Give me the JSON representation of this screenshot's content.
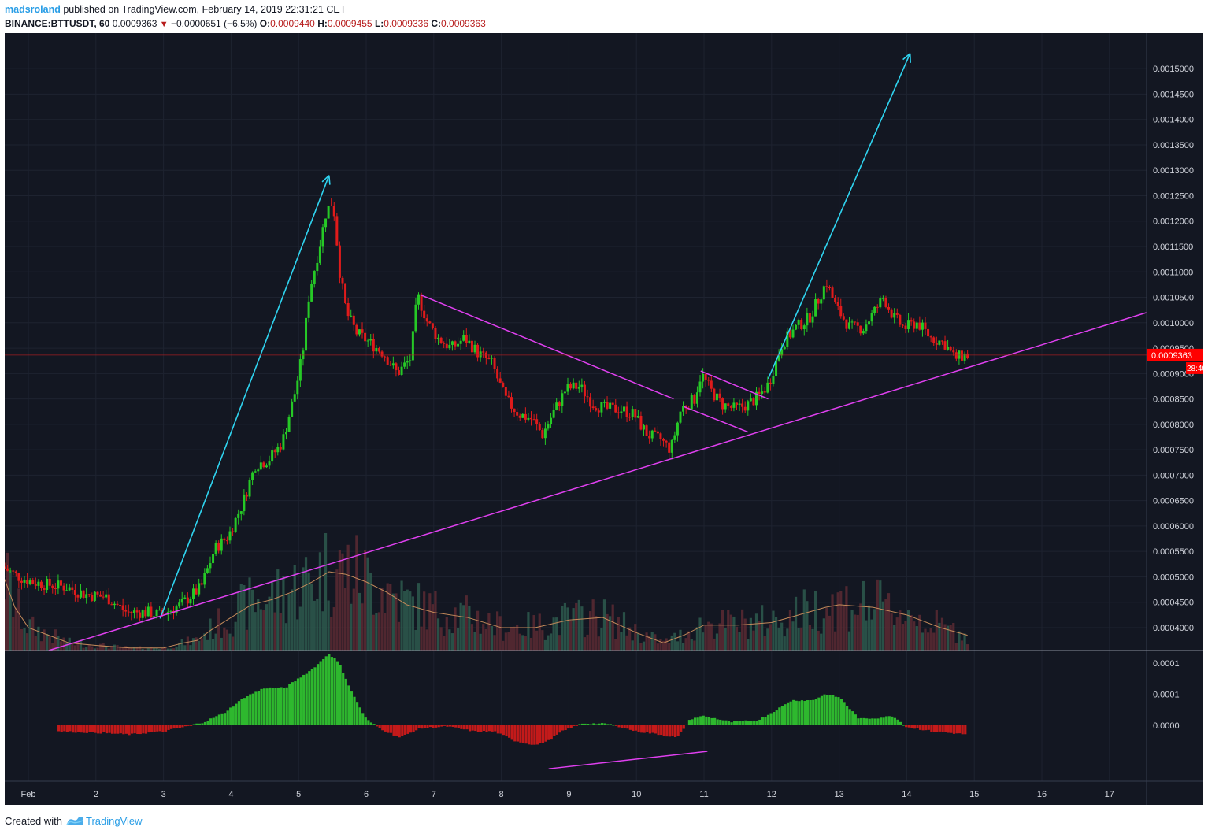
{
  "header": {
    "username": "madsroland",
    "published_text": "published on TradingView.com, February 14, 2019 22:31:21 CET",
    "symbol": "BINANCE:BTTUSDT, 60",
    "last_price": "0.0009363",
    "change_arrow": "▼",
    "change": "−0.0000651 (−6.5%)",
    "open_label": "O:",
    "open_value": "0.0009440",
    "high_label": "H:",
    "high_value": "0.0009455",
    "low_label": "L:",
    "low_value": "0.0009336",
    "close_label": "C:",
    "close_value": "0.0009363"
  },
  "price_tag": {
    "price": "0.0009363",
    "countdown": "28:40"
  },
  "footer": {
    "created_with": "Created with",
    "brand": "TradingView"
  },
  "colors": {
    "background": "#131722",
    "up_candle": "#26c926",
    "down_candle": "#e01b1b",
    "volume_up": "#2e5a4e",
    "volume_down": "#5c2a33",
    "volume_ma": "#c48a5a",
    "cyan_arrows": "#2fd4f0",
    "magenta_lines": "#e040f0",
    "osc_up": "#2eb82e",
    "osc_down": "#c41a1a",
    "price_tag": "#ff0000"
  },
  "chart_data": {
    "type": "candlestick",
    "title": "",
    "y_axis": {
      "ylim": [
        0.000355,
        0.00157
      ],
      "ticks": [
        "0.0015000",
        "0.0014500",
        "0.0014000",
        "0.0013500",
        "0.0013000",
        "0.0012500",
        "0.0012000",
        "0.0011500",
        "0.0011000",
        "0.0010500",
        "0.0010000",
        "0.0009500",
        "0.0009000",
        "0.0008500",
        "0.0008000",
        "0.0007500",
        "0.0007000",
        "0.0006500",
        "0.0006000",
        "0.0005500",
        "0.0005000",
        "0.0004500",
        "0.0004000"
      ],
      "tick_values": [
        0.0015,
        0.00145,
        0.0014,
        0.00135,
        0.0013,
        0.00125,
        0.0012,
        0.00115,
        0.0011,
        0.00105,
        0.001,
        0.00095,
        0.0009,
        0.00085,
        0.0008,
        0.00075,
        0.0007,
        0.00065,
        0.0006,
        0.00055,
        0.0005,
        0.00045,
        0.0004
      ]
    },
    "x_axis": {
      "range_days": [
        0.65,
        17.55
      ],
      "ticks": [
        "Feb",
        "2",
        "3",
        "4",
        "5",
        "6",
        "7",
        "8",
        "9",
        "10",
        "11",
        "12",
        "13",
        "14",
        "15",
        "16",
        "17"
      ],
      "tick_positions": [
        1,
        2,
        3,
        4,
        5,
        6,
        7,
        8,
        9,
        10,
        11,
        12,
        13,
        14,
        15,
        16,
        17
      ]
    },
    "price_path": [
      [
        0.65,
        0.00052
      ],
      [
        0.9,
        0.0005
      ],
      [
        1.1,
        0.00049
      ],
      [
        1.3,
        0.000485
      ],
      [
        1.6,
        0.00048
      ],
      [
        1.9,
        0.000465
      ],
      [
        2.2,
        0.00046
      ],
      [
        2.5,
        0.00043
      ],
      [
        2.8,
        0.00043
      ],
      [
        3.0,
        0.000425
      ],
      [
        3.3,
        0.000445
      ],
      [
        3.6,
        0.00048
      ],
      [
        3.8,
        0.000555
      ],
      [
        4.0,
        0.00058
      ],
      [
        4.2,
        0.00064
      ],
      [
        4.4,
        0.00072
      ],
      [
        4.6,
        0.00073
      ],
      [
        4.8,
        0.000765
      ],
      [
        5.0,
        0.00087
      ],
      [
        5.1,
        0.00094
      ],
      [
        5.2,
        0.00106
      ],
      [
        5.35,
        0.00115
      ],
      [
        5.45,
        0.00122
      ],
      [
        5.55,
        0.00124
      ],
      [
        5.65,
        0.0011
      ],
      [
        5.75,
        0.00102
      ],
      [
        5.9,
        0.00098
      ],
      [
        6.1,
        0.00096
      ],
      [
        6.3,
        0.00094
      ],
      [
        6.5,
        0.0009
      ],
      [
        6.7,
        0.00093
      ],
      [
        6.8,
        0.001055
      ],
      [
        6.95,
        0.001
      ],
      [
        7.1,
        0.00097
      ],
      [
        7.3,
        0.00095
      ],
      [
        7.5,
        0.00097
      ],
      [
        7.7,
        0.00094
      ],
      [
        7.9,
        0.00092
      ],
      [
        8.1,
        0.00085
      ],
      [
        8.3,
        0.00082
      ],
      [
        8.5,
        0.00081
      ],
      [
        8.65,
        0.00078
      ],
      [
        8.8,
        0.00082
      ],
      [
        9.0,
        0.00087
      ],
      [
        9.2,
        0.000875
      ],
      [
        9.4,
        0.00084
      ],
      [
        9.6,
        0.00083
      ],
      [
        9.8,
        0.00083
      ],
      [
        10.0,
        0.00082
      ],
      [
        10.2,
        0.00078
      ],
      [
        10.4,
        0.00077
      ],
      [
        10.55,
        0.00075
      ],
      [
        10.7,
        0.00083
      ],
      [
        10.9,
        0.00085
      ],
      [
        11.0,
        0.0009
      ],
      [
        11.15,
        0.000865
      ],
      [
        11.3,
        0.00084
      ],
      [
        11.5,
        0.00083
      ],
      [
        11.7,
        0.00084
      ],
      [
        11.85,
        0.000855
      ],
      [
        12.0,
        0.00088
      ],
      [
        12.2,
        0.00096
      ],
      [
        12.4,
        0.00099
      ],
      [
        12.6,
        0.00101
      ],
      [
        12.75,
        0.00105
      ],
      [
        12.85,
        0.00108
      ],
      [
        13.0,
        0.00103
      ],
      [
        13.2,
        0.00099
      ],
      [
        13.4,
        0.00099
      ],
      [
        13.55,
        0.00102
      ],
      [
        13.7,
        0.00105
      ],
      [
        13.85,
        0.00101
      ],
      [
        14.0,
        0.00099
      ],
      [
        14.2,
        0.001
      ],
      [
        14.4,
        0.00097
      ],
      [
        14.6,
        0.00096
      ],
      [
        14.75,
        0.00093
      ],
      [
        14.9,
        0.000936
      ]
    ],
    "volume_ma_path": [
      [
        0.65,
        0.000495
      ],
      [
        0.8,
        0.00044
      ],
      [
        1.0,
        0.0004
      ],
      [
        1.3,
        0.000385
      ],
      [
        1.6,
        0.00037
      ],
      [
        2.0,
        0.000365
      ],
      [
        2.5,
        0.00036
      ],
      [
        3.0,
        0.00036
      ],
      [
        3.3,
        0.00037
      ],
      [
        3.5,
        0.000375
      ],
      [
        3.7,
        0.000395
      ],
      [
        4.0,
        0.00042
      ],
      [
        4.3,
        0.000445
      ],
      [
        4.6,
        0.000455
      ],
      [
        4.9,
        0.00047
      ],
      [
        5.2,
        0.00049
      ],
      [
        5.45,
        0.00051
      ],
      [
        5.7,
        0.000505
      ],
      [
        6.0,
        0.00049
      ],
      [
        6.3,
        0.00047
      ],
      [
        6.6,
        0.000445
      ],
      [
        7.0,
        0.00043
      ],
      [
        7.5,
        0.00042
      ],
      [
        8.0,
        0.0004
      ],
      [
        8.5,
        0.0004
      ],
      [
        9.0,
        0.000415
      ],
      [
        9.5,
        0.00042
      ],
      [
        10.0,
        0.00039
      ],
      [
        10.4,
        0.00037
      ],
      [
        10.7,
        0.000385
      ],
      [
        11.0,
        0.000405
      ],
      [
        11.5,
        0.000405
      ],
      [
        12.0,
        0.00041
      ],
      [
        12.4,
        0.000425
      ],
      [
        12.8,
        0.00044
      ],
      [
        13.0,
        0.000445
      ],
      [
        13.5,
        0.00044
      ],
      [
        14.0,
        0.000425
      ],
      [
        14.5,
        0.0004
      ],
      [
        14.9,
        0.000385
      ]
    ],
    "oscillator": {
      "ylim": [
        -9e-05,
        0.00012
      ],
      "ticks": [
        "0.0001",
        "0.0001",
        "0.0000"
      ],
      "tick_values": [
        0.0001,
        5e-05,
        0.0
      ],
      "path": [
        [
          1.45,
          -1e-05
        ],
        [
          2.0,
          -1.2e-05
        ],
        [
          2.5,
          -1.5e-05
        ],
        [
          3.0,
          -1e-05
        ],
        [
          3.3,
          -3e-06
        ],
        [
          3.6,
          5e-06
        ],
        [
          3.9,
          2e-05
        ],
        [
          4.2,
          4.5e-05
        ],
        [
          4.5,
          6e-05
        ],
        [
          4.8,
          6e-05
        ],
        [
          5.0,
          7.5e-05
        ],
        [
          5.2,
          9e-05
        ],
        [
          5.45,
          0.000115
        ],
        [
          5.6,
          0.0001
        ],
        [
          5.8,
          5e-05
        ],
        [
          6.0,
          1e-05
        ],
        [
          6.2,
          -5e-06
        ],
        [
          6.5,
          -2e-05
        ],
        [
          6.8,
          -5e-06
        ],
        [
          7.2,
          -2e-06
        ],
        [
          7.6,
          -1e-05
        ],
        [
          7.9,
          -1e-05
        ],
        [
          8.2,
          -2.5e-05
        ],
        [
          8.5,
          -3.2e-05
        ],
        [
          8.7,
          -2.5e-05
        ],
        [
          8.9,
          -1e-05
        ],
        [
          9.2,
          3e-06
        ],
        [
          9.6,
          2e-06
        ],
        [
          10.0,
          -1e-05
        ],
        [
          10.3,
          -1.4e-05
        ],
        [
          10.6,
          -2e-05
        ],
        [
          10.8,
          1e-05
        ],
        [
          11.0,
          1.5e-05
        ],
        [
          11.4,
          5e-06
        ],
        [
          11.8,
          8e-06
        ],
        [
          12.0,
          2e-05
        ],
        [
          12.3,
          4e-05
        ],
        [
          12.6,
          4e-05
        ],
        [
          12.8,
          5e-05
        ],
        [
          13.0,
          4.5e-05
        ],
        [
          13.3,
          1e-05
        ],
        [
          13.6,
          1.2e-05
        ],
        [
          13.8,
          1.5e-05
        ],
        [
          14.0,
          -3e-06
        ],
        [
          14.4,
          -1e-05
        ],
        [
          14.6,
          -1.2e-05
        ],
        [
          14.9,
          -1.5e-05
        ]
      ]
    },
    "annotations": {
      "cyan_arrows": [
        {
          "from": [
            2.95,
            0.000418
          ],
          "to": [
            5.45,
            0.00129
          ]
        },
        {
          "from": [
            11.95,
            0.00089
          ],
          "to": [
            14.05,
            0.00153
          ]
        }
      ],
      "magenta_lines": [
        {
          "from": [
            1.3,
            0.000355
          ],
          "to": [
            17.55,
            0.00102
          ]
        },
        {
          "from": [
            6.8,
            0.001055
          ],
          "to": [
            10.55,
            0.00085
          ]
        },
        {
          "from": [
            10.95,
            0.000905
          ],
          "to": [
            11.95,
            0.00085
          ]
        },
        {
          "from": [
            10.7,
            0.000835
          ],
          "to": [
            11.65,
            0.000785
          ]
        }
      ],
      "oscillator_divergence": {
        "from": [
          8.7,
          -7e-05
        ],
        "to": [
          11.05,
          -4.2e-05
        ]
      }
    }
  }
}
